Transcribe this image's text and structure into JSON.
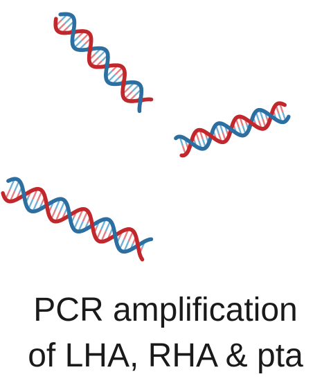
{
  "caption": {
    "line1": "PCR amplification",
    "line2": "of LHA, RHA & pta"
  },
  "colors": {
    "strand_a": "#c0282d",
    "strand_b": "#2c6fa0",
    "rung_a": "#e87c80",
    "rung_b": "#6fb0d6",
    "text": "#1a1a1a"
  },
  "icons": [
    "dna-helix-icon",
    "dna-helix-icon",
    "dna-helix-icon"
  ]
}
